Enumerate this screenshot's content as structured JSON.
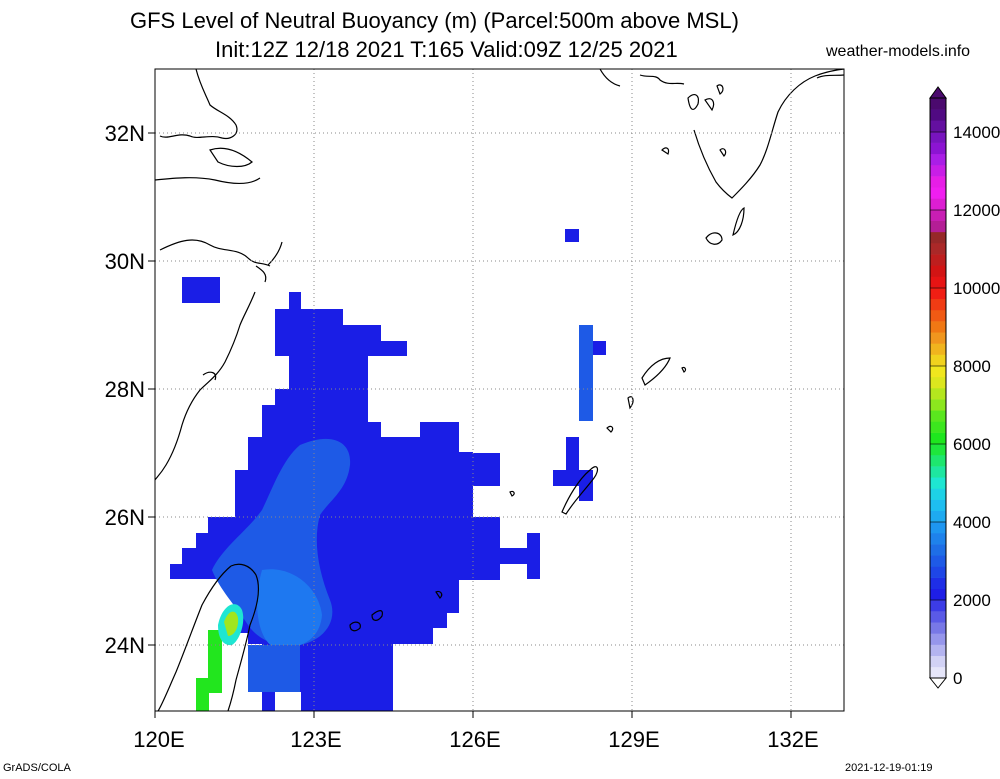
{
  "header": {
    "title_line1": "GFS Level of Neutral Buoyancy (m) (Parcel:500m above MSL)",
    "title_line2": "Init:12Z 12/18 2021 T:165 Valid:09Z 12/25 2021",
    "site": "weather-models.info"
  },
  "footer": {
    "software": "GrADS/COLA",
    "timestamp": "2021-12-19-01:19"
  },
  "map": {
    "lat_labels": [
      "32N",
      "30N",
      "28N",
      "26N",
      "24N"
    ],
    "lon_labels": [
      "120E",
      "123E",
      "126E",
      "129E",
      "132E"
    ]
  },
  "colorbar": {
    "labels": [
      "0",
      "2000",
      "4000",
      "6000",
      "8000",
      "10000",
      "12000",
      "14000"
    ]
  },
  "colors": {
    "blue_main": "#1a1ee6",
    "blue_light": "#1e5ae6",
    "blue_sky": "#1e78f0",
    "green": "#22e61e",
    "yellowgreen": "#a0e61e"
  }
}
